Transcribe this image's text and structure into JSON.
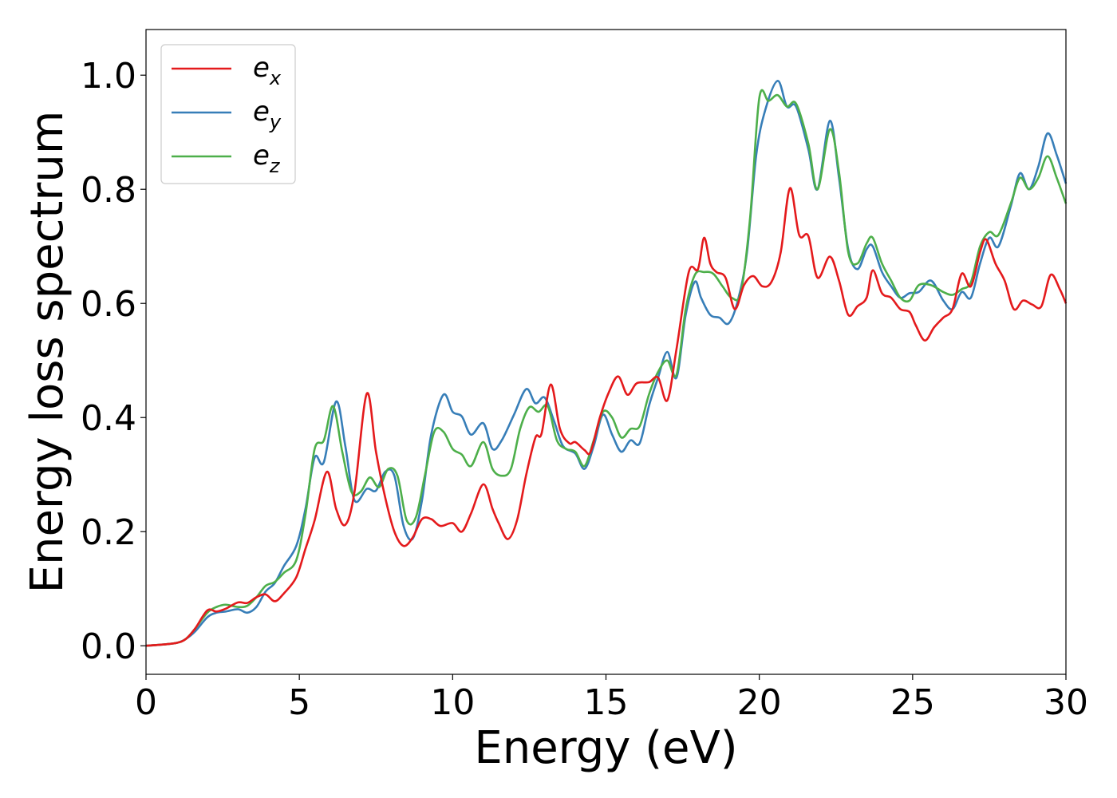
{
  "chart_data": {
    "type": "line",
    "title": "",
    "xlabel": "Energy (eV)",
    "ylabel": "Energy loss spectrum",
    "xlim": [
      0,
      30
    ],
    "ylim": [
      -0.05,
      1.08
    ],
    "x_ticks": [
      0,
      5,
      10,
      15,
      20,
      25,
      30
    ],
    "x_tick_labels": [
      "0",
      "5",
      "10",
      "15",
      "20",
      "25",
      "30"
    ],
    "y_ticks": [
      0.0,
      0.2,
      0.4,
      0.6,
      0.8,
      1.0
    ],
    "y_tick_labels": [
      "0.0",
      "0.2",
      "0.4",
      "0.6",
      "0.8",
      "1.0"
    ],
    "grid": false,
    "legend_position": "top-left",
    "series": [
      {
        "name": "x",
        "legend_base": "e",
        "legend_sub": "x",
        "color": "#e41a1c",
        "points": [
          [
            0,
            0
          ],
          [
            0.5,
            0.002
          ],
          [
            1.0,
            0.005
          ],
          [
            1.3,
            0.012
          ],
          [
            1.6,
            0.03
          ],
          [
            2.0,
            0.062
          ],
          [
            2.3,
            0.06
          ],
          [
            2.6,
            0.065
          ],
          [
            3.0,
            0.076
          ],
          [
            3.3,
            0.075
          ],
          [
            3.6,
            0.085
          ],
          [
            3.9,
            0.09
          ],
          [
            4.2,
            0.078
          ],
          [
            4.5,
            0.092
          ],
          [
            4.9,
            0.12
          ],
          [
            5.2,
            0.17
          ],
          [
            5.5,
            0.22
          ],
          [
            5.9,
            0.305
          ],
          [
            6.2,
            0.24
          ],
          [
            6.5,
            0.212
          ],
          [
            6.8,
            0.27
          ],
          [
            7.2,
            0.442
          ],
          [
            7.5,
            0.34
          ],
          [
            7.8,
            0.26
          ],
          [
            8.1,
            0.2
          ],
          [
            8.4,
            0.175
          ],
          [
            8.7,
            0.19
          ],
          [
            9.0,
            0.222
          ],
          [
            9.3,
            0.222
          ],
          [
            9.6,
            0.21
          ],
          [
            10.0,
            0.215
          ],
          [
            10.3,
            0.2
          ],
          [
            10.6,
            0.232
          ],
          [
            11.0,
            0.283
          ],
          [
            11.3,
            0.24
          ],
          [
            11.5,
            0.215
          ],
          [
            11.8,
            0.187
          ],
          [
            12.1,
            0.22
          ],
          [
            12.4,
            0.3
          ],
          [
            12.7,
            0.365
          ],
          [
            12.9,
            0.372
          ],
          [
            13.2,
            0.458
          ],
          [
            13.5,
            0.38
          ],
          [
            13.8,
            0.355
          ],
          [
            14.0,
            0.357
          ],
          [
            14.3,
            0.343
          ],
          [
            14.5,
            0.34
          ],
          [
            14.8,
            0.4
          ],
          [
            15.1,
            0.445
          ],
          [
            15.4,
            0.472
          ],
          [
            15.7,
            0.44
          ],
          [
            16.0,
            0.46
          ],
          [
            16.4,
            0.462
          ],
          [
            16.7,
            0.47
          ],
          [
            17.0,
            0.43
          ],
          [
            17.3,
            0.52
          ],
          [
            17.7,
            0.655
          ],
          [
            18.0,
            0.66
          ],
          [
            18.2,
            0.715
          ],
          [
            18.4,
            0.67
          ],
          [
            18.6,
            0.655
          ],
          [
            18.9,
            0.645
          ],
          [
            19.2,
            0.59
          ],
          [
            19.5,
            0.632
          ],
          [
            19.8,
            0.648
          ],
          [
            20.1,
            0.63
          ],
          [
            20.4,
            0.638
          ],
          [
            20.7,
            0.69
          ],
          [
            21.0,
            0.802
          ],
          [
            21.3,
            0.72
          ],
          [
            21.6,
            0.718
          ],
          [
            21.9,
            0.645
          ],
          [
            22.3,
            0.682
          ],
          [
            22.6,
            0.64
          ],
          [
            22.9,
            0.58
          ],
          [
            23.2,
            0.595
          ],
          [
            23.5,
            0.61
          ],
          [
            23.7,
            0.658
          ],
          [
            24.0,
            0.618
          ],
          [
            24.3,
            0.61
          ],
          [
            24.6,
            0.59
          ],
          [
            24.9,
            0.585
          ],
          [
            25.1,
            0.562
          ],
          [
            25.4,
            0.535
          ],
          [
            25.7,
            0.558
          ],
          [
            26.0,
            0.575
          ],
          [
            26.3,
            0.59
          ],
          [
            26.6,
            0.652
          ],
          [
            26.9,
            0.63
          ],
          [
            27.2,
            0.69
          ],
          [
            27.4,
            0.712
          ],
          [
            27.7,
            0.67
          ],
          [
            28.0,
            0.64
          ],
          [
            28.3,
            0.59
          ],
          [
            28.6,
            0.605
          ],
          [
            28.9,
            0.598
          ],
          [
            29.2,
            0.595
          ],
          [
            29.5,
            0.65
          ],
          [
            29.8,
            0.625
          ],
          [
            30.0,
            0.6
          ]
        ]
      },
      {
        "name": "y",
        "legend_base": "e",
        "legend_sub": "y",
        "color": "#377eb8",
        "points": [
          [
            0,
            0
          ],
          [
            0.5,
            0.002
          ],
          [
            1.0,
            0.005
          ],
          [
            1.3,
            0.012
          ],
          [
            1.6,
            0.025
          ],
          [
            2.0,
            0.05
          ],
          [
            2.3,
            0.058
          ],
          [
            2.6,
            0.06
          ],
          [
            3.0,
            0.064
          ],
          [
            3.3,
            0.058
          ],
          [
            3.6,
            0.068
          ],
          [
            3.9,
            0.095
          ],
          [
            4.2,
            0.11
          ],
          [
            4.5,
            0.14
          ],
          [
            4.9,
            0.175
          ],
          [
            5.2,
            0.24
          ],
          [
            5.5,
            0.33
          ],
          [
            5.8,
            0.322
          ],
          [
            6.2,
            0.428
          ],
          [
            6.5,
            0.35
          ],
          [
            6.8,
            0.255
          ],
          [
            7.2,
            0.275
          ],
          [
            7.5,
            0.272
          ],
          [
            7.8,
            0.305
          ],
          [
            8.1,
            0.298
          ],
          [
            8.4,
            0.21
          ],
          [
            8.7,
            0.188
          ],
          [
            9.0,
            0.255
          ],
          [
            9.3,
            0.37
          ],
          [
            9.7,
            0.44
          ],
          [
            10.0,
            0.41
          ],
          [
            10.3,
            0.402
          ],
          [
            10.6,
            0.37
          ],
          [
            11.0,
            0.39
          ],
          [
            11.3,
            0.345
          ],
          [
            11.6,
            0.36
          ],
          [
            12.0,
            0.405
          ],
          [
            12.4,
            0.45
          ],
          [
            12.7,
            0.425
          ],
          [
            13.0,
            0.435
          ],
          [
            13.3,
            0.395
          ],
          [
            13.6,
            0.35
          ],
          [
            14.0,
            0.337
          ],
          [
            14.3,
            0.31
          ],
          [
            14.6,
            0.35
          ],
          [
            14.9,
            0.405
          ],
          [
            15.2,
            0.37
          ],
          [
            15.5,
            0.34
          ],
          [
            15.8,
            0.36
          ],
          [
            16.1,
            0.355
          ],
          [
            16.4,
            0.42
          ],
          [
            16.7,
            0.47
          ],
          [
            17.0,
            0.515
          ],
          [
            17.3,
            0.47
          ],
          [
            17.6,
            0.58
          ],
          [
            17.9,
            0.638
          ],
          [
            18.1,
            0.61
          ],
          [
            18.4,
            0.58
          ],
          [
            18.7,
            0.575
          ],
          [
            19.0,
            0.565
          ],
          [
            19.3,
            0.605
          ],
          [
            19.6,
            0.69
          ],
          [
            19.9,
            0.86
          ],
          [
            20.2,
            0.94
          ],
          [
            20.6,
            0.99
          ],
          [
            20.9,
            0.945
          ],
          [
            21.2,
            0.945
          ],
          [
            21.6,
            0.87
          ],
          [
            21.9,
            0.8
          ],
          [
            22.3,
            0.92
          ],
          [
            22.6,
            0.82
          ],
          [
            22.9,
            0.695
          ],
          [
            23.2,
            0.66
          ],
          [
            23.5,
            0.695
          ],
          [
            23.7,
            0.7
          ],
          [
            24.0,
            0.655
          ],
          [
            24.3,
            0.63
          ],
          [
            24.6,
            0.61
          ],
          [
            24.9,
            0.618
          ],
          [
            25.2,
            0.62
          ],
          [
            25.6,
            0.64
          ],
          [
            26.0,
            0.605
          ],
          [
            26.3,
            0.59
          ],
          [
            26.6,
            0.62
          ],
          [
            26.9,
            0.61
          ],
          [
            27.2,
            0.67
          ],
          [
            27.5,
            0.715
          ],
          [
            27.8,
            0.7
          ],
          [
            28.2,
            0.77
          ],
          [
            28.5,
            0.828
          ],
          [
            28.8,
            0.8
          ],
          [
            29.1,
            0.84
          ],
          [
            29.4,
            0.898
          ],
          [
            29.7,
            0.86
          ],
          [
            30.0,
            0.81
          ]
        ]
      },
      {
        "name": "z",
        "legend_base": "e",
        "legend_sub": "z",
        "color": "#4daf4a",
        "points": [
          [
            0,
            0
          ],
          [
            0.5,
            0.002
          ],
          [
            1.0,
            0.005
          ],
          [
            1.3,
            0.012
          ],
          [
            1.6,
            0.03
          ],
          [
            2.0,
            0.058
          ],
          [
            2.3,
            0.068
          ],
          [
            2.6,
            0.072
          ],
          [
            3.0,
            0.068
          ],
          [
            3.3,
            0.07
          ],
          [
            3.6,
            0.085
          ],
          [
            3.9,
            0.105
          ],
          [
            4.2,
            0.112
          ],
          [
            4.5,
            0.128
          ],
          [
            4.9,
            0.15
          ],
          [
            5.2,
            0.23
          ],
          [
            5.5,
            0.345
          ],
          [
            5.8,
            0.36
          ],
          [
            6.1,
            0.42
          ],
          [
            6.4,
            0.34
          ],
          [
            6.7,
            0.27
          ],
          [
            7.0,
            0.27
          ],
          [
            7.3,
            0.295
          ],
          [
            7.6,
            0.278
          ],
          [
            7.9,
            0.31
          ],
          [
            8.2,
            0.298
          ],
          [
            8.5,
            0.22
          ],
          [
            8.8,
            0.225
          ],
          [
            9.1,
            0.3
          ],
          [
            9.4,
            0.375
          ],
          [
            9.7,
            0.375
          ],
          [
            10.0,
            0.345
          ],
          [
            10.3,
            0.335
          ],
          [
            10.6,
            0.315
          ],
          [
            11.0,
            0.357
          ],
          [
            11.3,
            0.31
          ],
          [
            11.6,
            0.298
          ],
          [
            11.9,
            0.31
          ],
          [
            12.2,
            0.38
          ],
          [
            12.5,
            0.418
          ],
          [
            12.8,
            0.41
          ],
          [
            13.1,
            0.42
          ],
          [
            13.4,
            0.36
          ],
          [
            13.7,
            0.345
          ],
          [
            14.0,
            0.34
          ],
          [
            14.3,
            0.315
          ],
          [
            14.6,
            0.36
          ],
          [
            14.9,
            0.41
          ],
          [
            15.2,
            0.4
          ],
          [
            15.5,
            0.365
          ],
          [
            15.8,
            0.38
          ],
          [
            16.1,
            0.385
          ],
          [
            16.4,
            0.44
          ],
          [
            16.7,
            0.48
          ],
          [
            17.0,
            0.5
          ],
          [
            17.3,
            0.475
          ],
          [
            17.6,
            0.59
          ],
          [
            17.9,
            0.65
          ],
          [
            18.2,
            0.655
          ],
          [
            18.5,
            0.652
          ],
          [
            18.8,
            0.63
          ],
          [
            19.1,
            0.61
          ],
          [
            19.4,
            0.62
          ],
          [
            19.7,
            0.75
          ],
          [
            20.0,
            0.96
          ],
          [
            20.3,
            0.955
          ],
          [
            20.6,
            0.965
          ],
          [
            20.9,
            0.945
          ],
          [
            21.2,
            0.95
          ],
          [
            21.6,
            0.88
          ],
          [
            21.9,
            0.8
          ],
          [
            22.3,
            0.905
          ],
          [
            22.6,
            0.83
          ],
          [
            22.9,
            0.69
          ],
          [
            23.2,
            0.67
          ],
          [
            23.5,
            0.705
          ],
          [
            23.7,
            0.715
          ],
          [
            24.0,
            0.67
          ],
          [
            24.3,
            0.64
          ],
          [
            24.6,
            0.61
          ],
          [
            24.9,
            0.605
          ],
          [
            25.2,
            0.632
          ],
          [
            25.6,
            0.632
          ],
          [
            26.0,
            0.62
          ],
          [
            26.3,
            0.615
          ],
          [
            26.6,
            0.625
          ],
          [
            26.9,
            0.637
          ],
          [
            27.2,
            0.7
          ],
          [
            27.5,
            0.725
          ],
          [
            27.8,
            0.72
          ],
          [
            28.2,
            0.775
          ],
          [
            28.5,
            0.82
          ],
          [
            28.8,
            0.8
          ],
          [
            29.1,
            0.82
          ],
          [
            29.4,
            0.858
          ],
          [
            29.7,
            0.82
          ],
          [
            30.0,
            0.775
          ]
        ]
      }
    ]
  }
}
